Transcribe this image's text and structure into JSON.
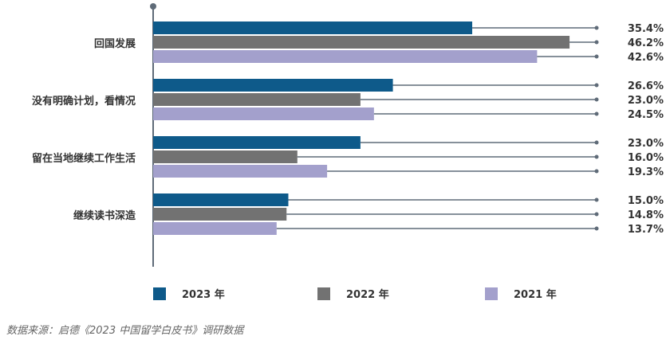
{
  "chart_data": {
    "type": "bar",
    "orientation": "horizontal",
    "categories": [
      "回国发展",
      "没有明确计划，看情况",
      "留在当地继续工作生活",
      "继续读书深造"
    ],
    "series": [
      {
        "name": "2023 年",
        "color": "#0e5a8a",
        "values": [
          35.4,
          26.6,
          23.0,
          15.0
        ],
        "labels": [
          "35.4%",
          "26.6%",
          "23.0%",
          "15.0%"
        ]
      },
      {
        "name": "2022 年",
        "color": "#727272",
        "values": [
          46.2,
          23.0,
          16.0,
          14.8
        ],
        "labels": [
          "46.2%",
          "23.0%",
          "16.0%",
          "14.8%"
        ]
      },
      {
        "name": "2021 年",
        "color": "#a3a0cc",
        "values": [
          42.6,
          24.5,
          19.3,
          13.7
        ],
        "labels": [
          "42.6%",
          "24.5%",
          "19.3%",
          "13.7%"
        ]
      }
    ],
    "xlim": [
      0,
      50
    ],
    "unit": "%",
    "grid": false,
    "legend": "bottom"
  },
  "source": "数据来源：启德《2023 中国留学白皮书》调研数据"
}
